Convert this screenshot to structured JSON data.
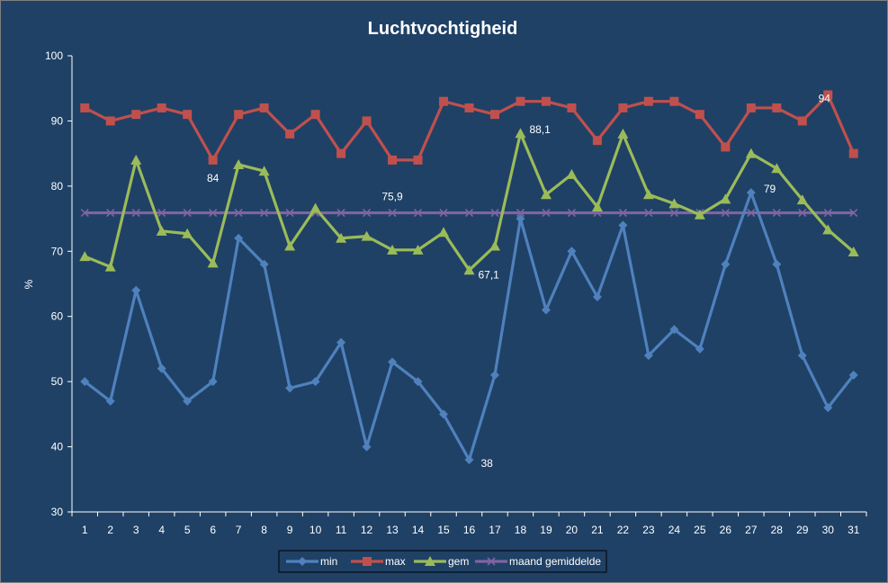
{
  "chart_data": {
    "type": "line",
    "title": "Luchtvochtigheid",
    "ylabel": "%",
    "xlabel": "",
    "ylim": [
      30,
      100
    ],
    "yticks": [
      30,
      40,
      50,
      60,
      70,
      80,
      90,
      100
    ],
    "categories": [
      "1",
      "2",
      "3",
      "4",
      "5",
      "6",
      "7",
      "8",
      "9",
      "10",
      "11",
      "12",
      "13",
      "14",
      "15",
      "16",
      "17",
      "18",
      "19",
      "20",
      "21",
      "22",
      "23",
      "24",
      "25",
      "26",
      "27",
      "28",
      "29",
      "30",
      "31"
    ],
    "grid": false,
    "legend_position": "bottom",
    "series": [
      {
        "name": "min",
        "color": "#4f81bd",
        "marker": "diamond",
        "values": [
          50,
          47,
          64,
          52,
          47,
          50,
          72,
          68,
          49,
          50,
          56,
          40,
          53,
          50,
          45,
          38,
          51,
          75,
          61,
          70,
          63,
          74,
          54,
          58,
          55,
          68,
          79,
          68,
          54,
          46,
          51
        ]
      },
      {
        "name": "max",
        "color": "#c0504d",
        "marker": "square",
        "values": [
          92,
          90,
          91,
          92,
          91,
          84,
          91,
          92,
          88,
          91,
          85,
          90,
          84,
          84,
          93,
          92,
          91,
          93,
          93,
          92,
          87,
          92,
          93,
          93,
          91,
          86,
          92,
          92,
          90,
          94,
          85
        ]
      },
      {
        "name": "gem",
        "color": "#9bbb59",
        "marker": "triangle",
        "values": [
          69.2,
          67.6,
          84,
          73.1,
          72.7,
          68.2,
          83.3,
          82.3,
          70.8,
          76.6,
          72,
          72.3,
          70.2,
          70.2,
          72.9,
          67.1,
          70.8,
          88.1,
          78.7,
          81.8,
          76.8,
          88,
          78.7,
          77.3,
          75.6,
          78,
          85,
          82.7,
          77.9,
          73.3,
          69.9
        ]
      },
      {
        "name": "maand gemiddelde",
        "color": "#8064a2",
        "marker": "x",
        "values": [
          75.9,
          75.9,
          75.9,
          75.9,
          75.9,
          75.9,
          75.9,
          75.9,
          75.9,
          75.9,
          75.9,
          75.9,
          75.9,
          75.9,
          75.9,
          75.9,
          75.9,
          75.9,
          75.9,
          75.9,
          75.9,
          75.9,
          75.9,
          75.9,
          75.9,
          75.9,
          75.9,
          75.9,
          75.9,
          75.9,
          75.9
        ]
      }
    ],
    "annotations": [
      {
        "series": 1,
        "index": 5,
        "text": "84"
      },
      {
        "series": 3,
        "index": 12,
        "text": "75,9"
      },
      {
        "series": 2,
        "index": 17,
        "text": "88,1"
      },
      {
        "series": 2,
        "index": 15,
        "text": "67,1"
      },
      {
        "series": 0,
        "index": 26,
        "text": "79"
      },
      {
        "series": 1,
        "index": 29,
        "text": "94"
      },
      {
        "series": 0,
        "index": 15,
        "text": "38"
      }
    ]
  }
}
